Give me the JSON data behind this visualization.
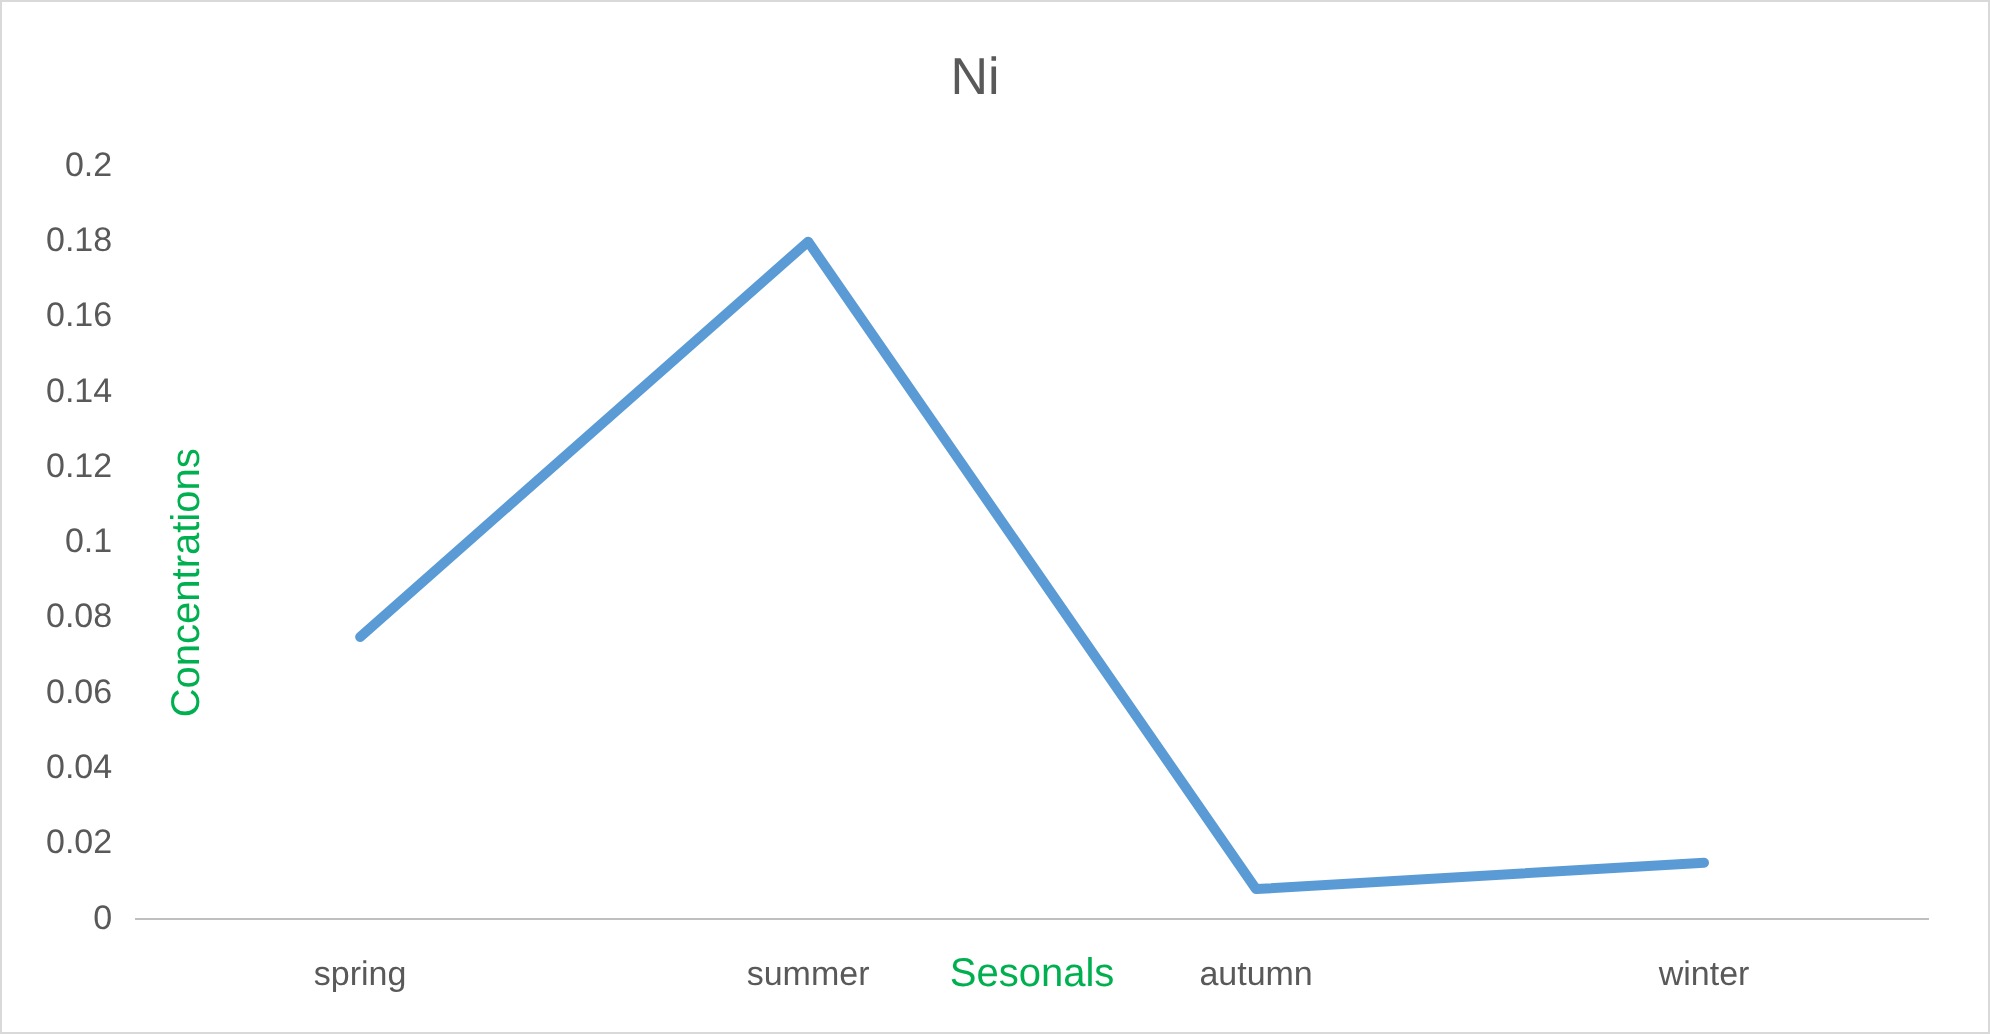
{
  "chart_data": {
    "type": "line",
    "title": "Ni",
    "xlabel": "Sesonals",
    "ylabel": "Concentrations",
    "categories": [
      "spring",
      "summer",
      "autumn",
      "winter"
    ],
    "series": [
      {
        "color": "#5b9bd5",
        "values": [
          0.075,
          0.18,
          0.008,
          0.015
        ]
      }
    ],
    "ylim": [
      0,
      0.2
    ],
    "yticks": [
      0,
      0.02,
      0.04,
      0.06,
      0.08,
      0.1,
      0.12,
      0.14,
      0.16,
      0.18,
      0.2
    ],
    "grid": false,
    "legend": false,
    "marker": "none",
    "line_style": "solid"
  }
}
